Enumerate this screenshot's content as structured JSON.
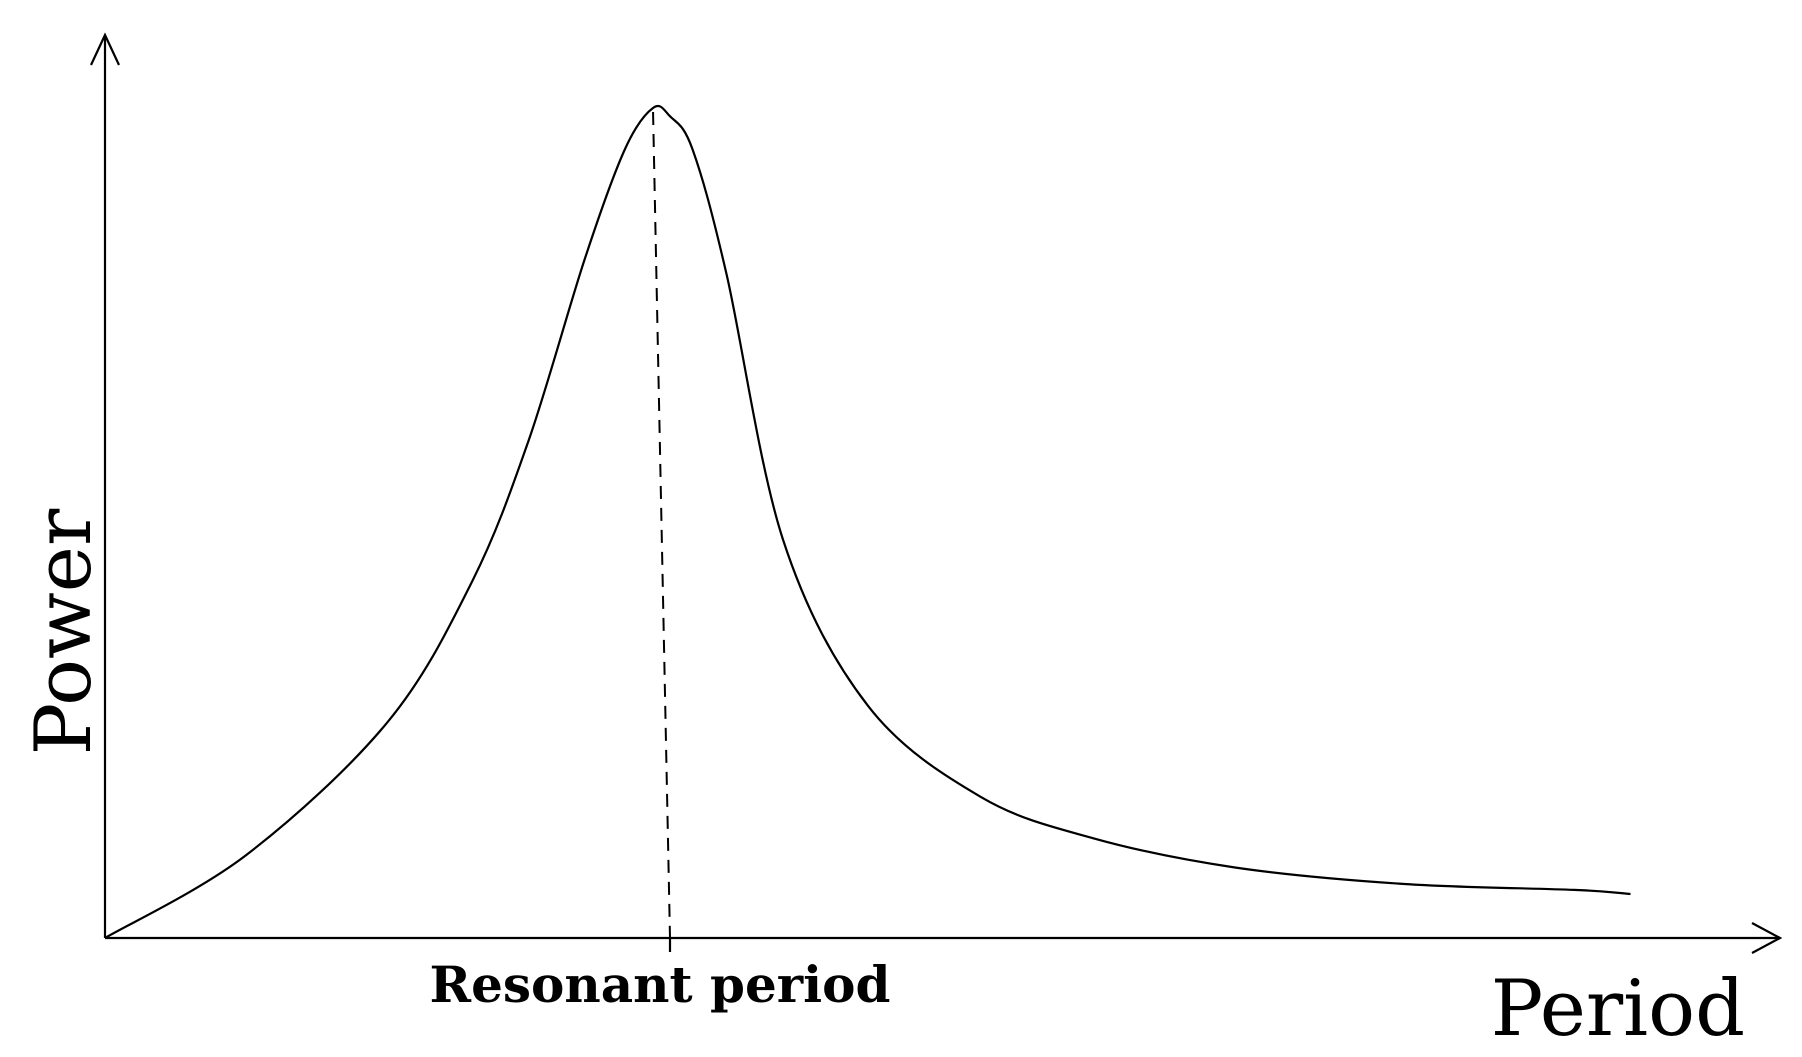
{
  "chart_data": {
    "type": "line",
    "title": "",
    "xlabel": "Period",
    "ylabel": "Power",
    "grid": false,
    "legend": "none",
    "x_tick_labels": [
      {
        "x": 1,
        "label": "Resonant period"
      }
    ],
    "resonant_marker": {
      "x": 1,
      "style": "dashed"
    },
    "xlim": [
      0,
      3
    ],
    "ylim": [
      0,
      1.1
    ],
    "series": [
      {
        "x": [
          0.0,
          0.25,
          0.5,
          0.65,
          0.75,
          0.85,
          0.92,
          0.97,
          1.0,
          1.04,
          1.1,
          1.2,
          1.35,
          1.55,
          1.75,
          2.0,
          2.3,
          2.6,
          2.7
        ],
        "y": [
          0.0,
          0.1,
          0.26,
          0.43,
          0.6,
          0.82,
          0.95,
          1.0,
          0.99,
          0.95,
          0.8,
          0.48,
          0.28,
          0.17,
          0.12,
          0.085,
          0.065,
          0.058,
          0.053
        ]
      }
    ],
    "line_color": "#000000"
  }
}
